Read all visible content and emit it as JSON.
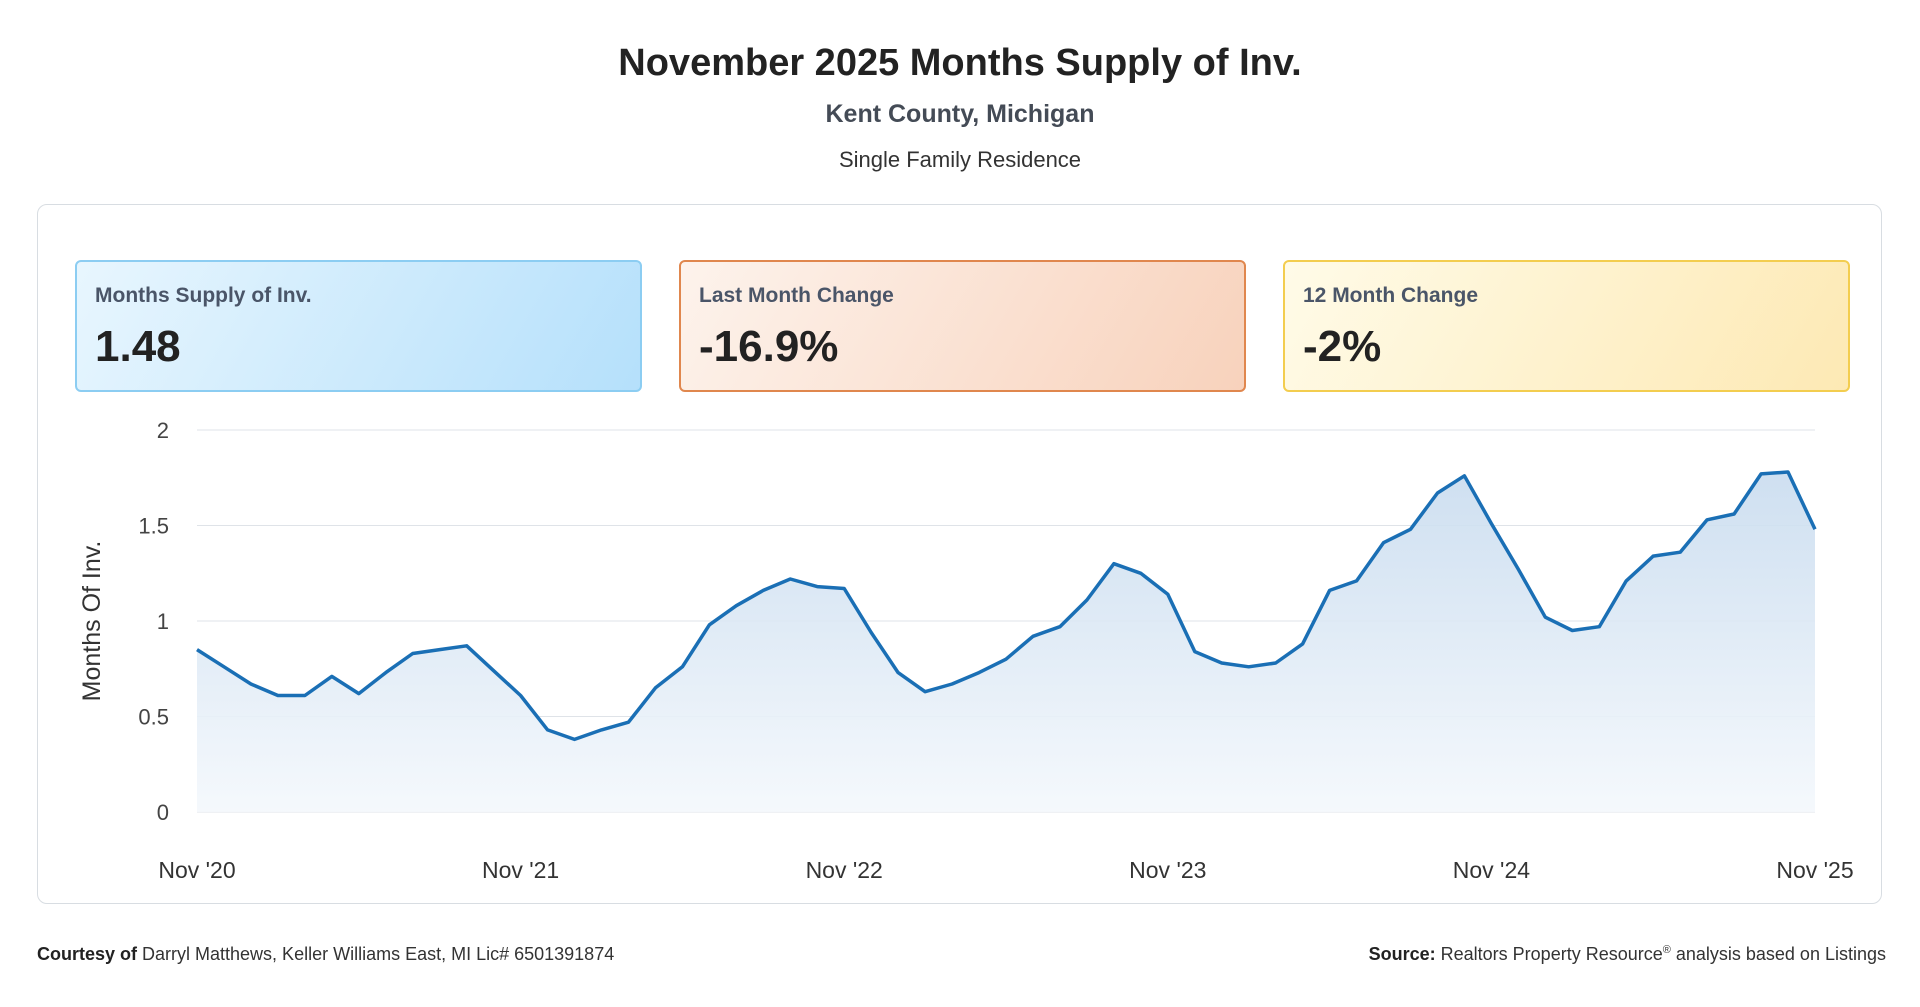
{
  "header": {
    "title": "November 2025 Months Supply of Inv.",
    "subtitle": "Kent County, Michigan",
    "subtitle2": "Single Family Residence"
  },
  "cards": [
    {
      "label": "Months Supply of Inv.",
      "value": "1.48",
      "color": "#8ccdf2"
    },
    {
      "label": "Last Month Change",
      "value": "-16.9%",
      "color": "#e0874e"
    },
    {
      "label": "12 Month Change",
      "value": "-2%",
      "color": "#f3cd4f"
    }
  ],
  "chart_data": {
    "type": "area",
    "ylabel": "Months Of Inv.",
    "xlabel": "",
    "ylim": [
      0,
      2
    ],
    "yticks": [
      "0",
      "0.5",
      "1",
      "1.5",
      "2"
    ],
    "xtick_labels": [
      "Nov '20",
      "Nov '21",
      "Nov '22",
      "Nov '23",
      "Nov '24",
      "Nov '25"
    ],
    "grid": true,
    "line_color": "#1a6fb5",
    "series": [
      {
        "name": "",
        "x": [
          "Nov '20",
          "Dec '20",
          "Jan '21",
          "Feb '21",
          "Mar '21",
          "Apr '21",
          "May '21",
          "Jun '21",
          "Jul '21",
          "Aug '21",
          "Sep '21",
          "Oct '21",
          "Nov '21",
          "Dec '21",
          "Jan '22",
          "Feb '22",
          "Mar '22",
          "Apr '22",
          "May '22",
          "Jun '22",
          "Jul '22",
          "Aug '22",
          "Sep '22",
          "Oct '22",
          "Nov '22",
          "Dec '22",
          "Jan '23",
          "Feb '23",
          "Mar '23",
          "Apr '23",
          "May '23",
          "Jun '23",
          "Jul '23",
          "Aug '23",
          "Sep '23",
          "Oct '23",
          "Nov '23",
          "Dec '23",
          "Jan '24",
          "Feb '24",
          "Mar '24",
          "Apr '24",
          "May '24",
          "Jun '24",
          "Jul '24",
          "Aug '24",
          "Sep '24",
          "Oct '24",
          "Nov '24",
          "Dec '24",
          "Jan '25",
          "Feb '25",
          "Mar '25",
          "Apr '25",
          "May '25",
          "Jun '25",
          "Jul '25",
          "Aug '25",
          "Sep '25",
          "Oct '25",
          "Nov '25"
        ],
        "values": [
          0.85,
          0.76,
          0.67,
          0.61,
          0.61,
          0.71,
          0.62,
          0.73,
          0.83,
          0.85,
          0.87,
          0.74,
          0.61,
          0.43,
          0.38,
          0.43,
          0.47,
          0.65,
          0.76,
          0.98,
          1.08,
          1.16,
          1.22,
          1.18,
          1.17,
          0.94,
          0.73,
          0.63,
          0.67,
          0.73,
          0.8,
          0.92,
          0.97,
          1.11,
          1.3,
          1.25,
          1.14,
          0.84,
          0.78,
          0.76,
          0.78,
          0.88,
          1.16,
          1.21,
          1.41,
          1.48,
          1.67,
          1.76,
          1.51,
          1.27,
          1.02,
          0.95,
          0.97,
          1.21,
          1.34,
          1.36,
          1.53,
          1.56,
          1.77,
          1.78,
          1.48
        ]
      }
    ]
  },
  "footer": {
    "courtesy_label": "Courtesy of",
    "courtesy_text": "Darryl Matthews, Keller Williams East, MI Lic# 6501391874",
    "source_label": "Source:",
    "source_text_1": "Realtors Property Resource",
    "source_sup": "®",
    "source_text_2": "analysis based on Listings"
  }
}
